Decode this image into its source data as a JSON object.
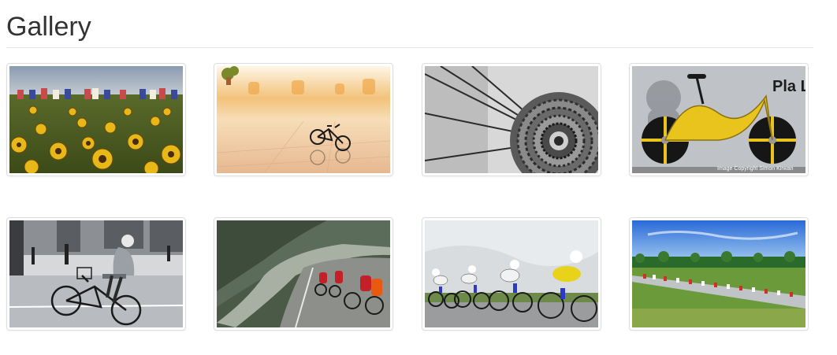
{
  "page": {
    "title": "Gallery"
  },
  "gallery": {
    "items": [
      {
        "subject": "peloton-sunflowers"
      },
      {
        "subject": "miniature-bicycle"
      },
      {
        "subject": "bike-cassette-closeup"
      },
      {
        "subject": "yellow-track-bike",
        "watermark": "Image Copyright Simon Kirwan",
        "poster_text": "Pla Li"
      },
      {
        "subject": "elderly-cyclist-street"
      },
      {
        "subject": "mountain-road-race"
      },
      {
        "subject": "time-trial-team"
      },
      {
        "subject": "peloton-countryside"
      }
    ]
  }
}
